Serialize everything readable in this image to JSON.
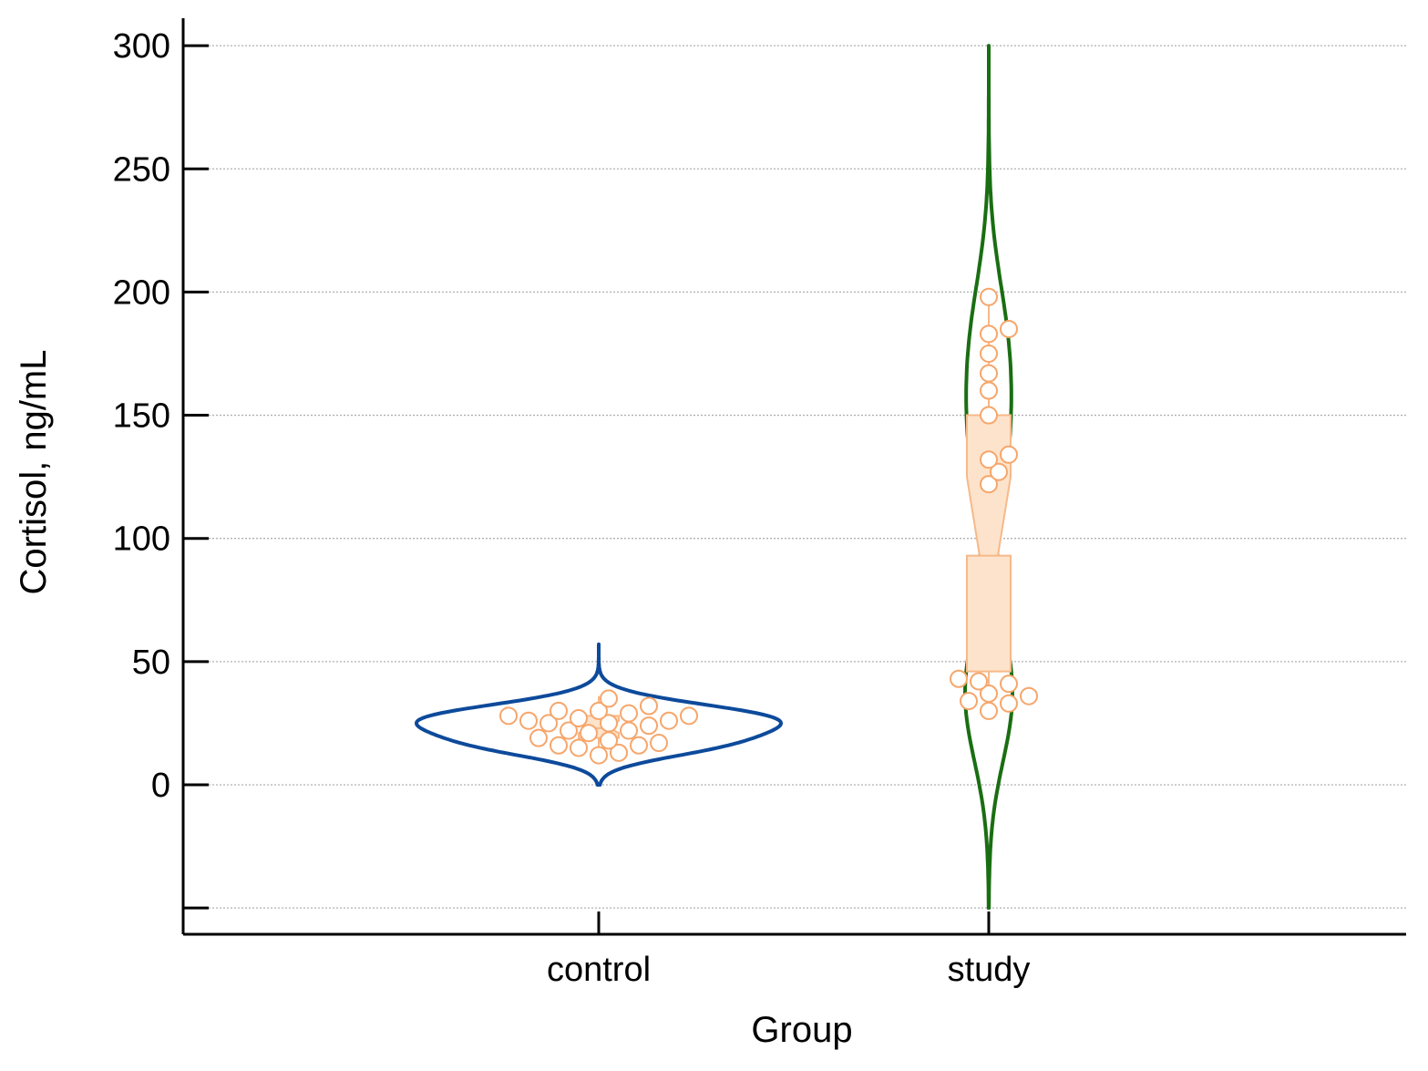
{
  "chart_data": {
    "type": "violin",
    "xlabel": "Group",
    "ylabel": "Cortisol, ng/mL",
    "categories": [
      "control",
      "study"
    ],
    "ylim": [
      -50,
      300
    ],
    "yticks": [
      300,
      250,
      200,
      150,
      100,
      50,
      0
    ],
    "grid": true,
    "groups": [
      {
        "name": "control",
        "violin_color": "#0d4a9b",
        "box_color": "#f6b98a",
        "violin_range": [
          0,
          57
        ],
        "box": {
          "q1": 19,
          "median": 23,
          "q3": 28,
          "notch_low": 21,
          "notch_high": 26,
          "whisker_low": 13,
          "whisker_high": 36
        },
        "points": [
          24,
          28,
          18,
          12,
          25,
          16,
          29,
          13,
          28,
          19,
          22,
          35,
          15,
          27,
          30,
          22,
          17,
          26,
          21,
          25,
          32,
          26,
          30,
          16
        ]
      },
      {
        "name": "study",
        "violin_color": "#1a6e12",
        "box_color": "#f6b98a",
        "violin_range": [
          -50,
          300
        ],
        "box": {
          "q1": 46,
          "median": 93,
          "q3": 150,
          "notch_low": 93,
          "notch_high": 125,
          "whisker_low": 30,
          "whisker_high": 198
        },
        "points": [
          198,
          183,
          185,
          175,
          167,
          160,
          150,
          132,
          134,
          127,
          122,
          42,
          43,
          41,
          37,
          36,
          34,
          33,
          30
        ]
      }
    ]
  }
}
